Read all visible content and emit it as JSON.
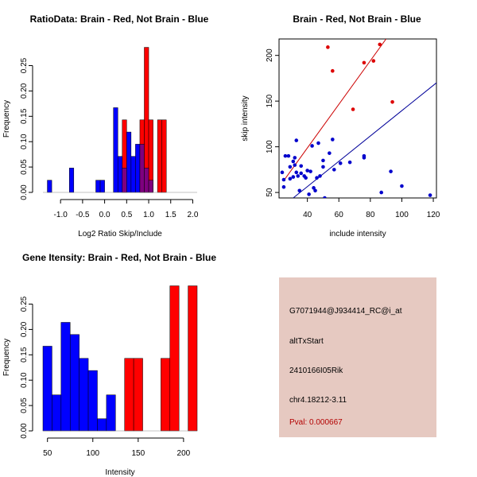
{
  "colors": {
    "red": "#ff0000",
    "blue": "#0000ff",
    "overlap": "#7f007f",
    "scatter_red": "#dd0000",
    "scatter_blue": "#0000cc",
    "fit_red": "#cc0000",
    "fit_blue": "#000099",
    "panel_bg": "#e6c9c1",
    "pval": "#b30000"
  },
  "chart_data": [
    {
      "id": "ratio-hist",
      "type": "bar",
      "title": "RatioData: Brain - Red, Not Brain - Blue",
      "xlabel": "Log2 Ratio Skip/Include",
      "ylabel": "Frequency",
      "xlim": [
        -1.4,
        2.1
      ],
      "ylim": [
        0,
        0.29
      ],
      "xticks": [
        -1.0,
        -0.5,
        0.0,
        0.5,
        1.0,
        1.5,
        2.0
      ],
      "xtick_labels": [
        "-1.0",
        "-0.5",
        "0.0",
        "0.5",
        "1.0",
        "1.5",
        "2.0"
      ],
      "yticks": [
        0.0,
        0.05,
        0.1,
        0.15,
        0.2,
        0.25
      ],
      "ytick_labels": [
        "0.00",
        "0.05",
        "0.10",
        "0.15",
        "0.20",
        "0.25"
      ],
      "series": [
        {
          "name": "Not Brain",
          "color": "blue",
          "bins": [
            {
              "x0": -1.3,
              "x1": -1.2,
              "value": 0.024
            },
            {
              "x0": -0.8,
              "x1": -0.7,
              "value": 0.048
            },
            {
              "x0": -0.2,
              "x1": -0.1,
              "value": 0.024
            },
            {
              "x0": -0.1,
              "x1": 0.0,
              "value": 0.024
            },
            {
              "x0": 0.2,
              "x1": 0.3,
              "value": 0.167
            },
            {
              "x0": 0.3,
              "x1": 0.4,
              "value": 0.071
            },
            {
              "x0": 0.4,
              "x1": 0.5,
              "value": 0.048
            },
            {
              "x0": 0.5,
              "x1": 0.6,
              "value": 0.119
            },
            {
              "x0": 0.6,
              "x1": 0.7,
              "value": 0.071
            },
            {
              "x0": 0.7,
              "x1": 0.8,
              "value": 0.095
            },
            {
              "x0": 0.8,
              "x1": 0.9,
              "value": 0.095
            },
            {
              "x0": 0.9,
              "x1": 1.0,
              "value": 0.048
            },
            {
              "x0": 1.0,
              "x1": 1.1,
              "value": 0.024
            }
          ]
        },
        {
          "name": "Brain",
          "color": "red",
          "bins": [
            {
              "x0": 0.4,
              "x1": 0.5,
              "value": 0.143
            },
            {
              "x0": 0.8,
              "x1": 0.9,
              "value": 0.143
            },
            {
              "x0": 0.9,
              "x1": 1.0,
              "value": 0.286
            },
            {
              "x0": 1.0,
              "x1": 1.1,
              "value": 0.143
            },
            {
              "x0": 1.2,
              "x1": 1.3,
              "value": 0.143
            },
            {
              "x0": 1.3,
              "x1": 1.4,
              "value": 0.143
            }
          ]
        }
      ]
    },
    {
      "id": "intensity-scatter",
      "type": "scatter",
      "title": "Brain - Red, Not Brain - Blue",
      "xlabel": "include intensity",
      "ylabel": "skip intensity",
      "xlim": [
        22,
        122
      ],
      "ylim": [
        44,
        218
      ],
      "xticks": [
        40,
        60,
        80,
        100,
        120
      ],
      "xtick_labels": [
        "40",
        "60",
        "80",
        "100",
        "120"
      ],
      "yticks": [
        50,
        100,
        150,
        200
      ],
      "ytick_labels": [
        "50",
        "100",
        "150",
        "200"
      ],
      "series": [
        {
          "name": "Brain",
          "color": "scatter_red",
          "points": [
            [
              53,
              209
            ],
            [
              56,
              183
            ],
            [
              76,
              192
            ],
            [
              82,
              194
            ],
            [
              86,
              212
            ],
            [
              94,
              149
            ],
            [
              69,
              141
            ]
          ]
        },
        {
          "name": "Not Brain",
          "color": "scatter_blue",
          "points": [
            [
              24,
              72
            ],
            [
              25,
              56
            ],
            [
              25,
              64
            ],
            [
              26,
              90
            ],
            [
              28,
              90
            ],
            [
              29,
              65
            ],
            [
              29,
              78
            ],
            [
              31,
              84
            ],
            [
              31,
              67
            ],
            [
              32,
              88
            ],
            [
              32,
              80
            ],
            [
              33,
              107
            ],
            [
              33,
              72
            ],
            [
              34,
              68
            ],
            [
              35,
              52
            ],
            [
              36,
              79
            ],
            [
              36,
              71
            ],
            [
              38,
              68
            ],
            [
              39,
              66
            ],
            [
              40,
              74
            ],
            [
              41,
              48
            ],
            [
              42,
              73
            ],
            [
              43,
              101
            ],
            [
              44,
              55
            ],
            [
              45,
              52
            ],
            [
              46,
              66
            ],
            [
              47,
              104
            ],
            [
              48,
              68
            ],
            [
              50,
              78
            ],
            [
              50,
              85
            ],
            [
              51,
              44
            ],
            [
              54,
              93
            ],
            [
              56,
              108
            ],
            [
              57,
              75
            ],
            [
              61,
              82
            ],
            [
              67,
              83
            ],
            [
              76,
              88
            ],
            [
              76,
              90
            ],
            [
              93,
              73
            ],
            [
              100,
              57
            ],
            [
              118,
              47
            ],
            [
              87,
              50
            ]
          ]
        }
      ],
      "fits": [
        {
          "name": "Brain fit",
          "color": "fit_red",
          "x0": 25,
          "y0": 63,
          "x1": 90,
          "y1": 218
        },
        {
          "name": "Not Brain fit",
          "color": "fit_blue",
          "x0": 31,
          "y0": 44,
          "x1": 122,
          "y1": 170
        }
      ]
    },
    {
      "id": "gene-hist",
      "type": "bar",
      "title": "Gene Itensity: Brain - Red, Not Brain - Blue",
      "xlabel": "Intensity",
      "ylabel": "Frequency",
      "xlim": [
        45,
        215
      ],
      "ylim": [
        0,
        0.29
      ],
      "xticks": [
        50,
        100,
        150,
        200
      ],
      "xtick_labels": [
        "50",
        "100",
        "150",
        "200"
      ],
      "yticks": [
        0.0,
        0.05,
        0.1,
        0.15,
        0.2,
        0.25
      ],
      "ytick_labels": [
        "0.00",
        "0.05",
        "0.10",
        "0.15",
        "0.20",
        "0.25"
      ],
      "series": [
        {
          "name": "Not Brain",
          "color": "blue",
          "bins": [
            {
              "x0": 45,
              "x1": 55,
              "value": 0.167
            },
            {
              "x0": 55,
              "x1": 65,
              "value": 0.071
            },
            {
              "x0": 65,
              "x1": 75,
              "value": 0.214
            },
            {
              "x0": 75,
              "x1": 85,
              "value": 0.19
            },
            {
              "x0": 85,
              "x1": 95,
              "value": 0.143
            },
            {
              "x0": 95,
              "x1": 105,
              "value": 0.119
            },
            {
              "x0": 105,
              "x1": 115,
              "value": 0.024
            },
            {
              "x0": 115,
              "x1": 125,
              "value": 0.071
            }
          ]
        },
        {
          "name": "Brain",
          "color": "red",
          "bins": [
            {
              "x0": 135,
              "x1": 145,
              "value": 0.143
            },
            {
              "x0": 145,
              "x1": 155,
              "value": 0.143
            },
            {
              "x0": 175,
              "x1": 185,
              "value": 0.143
            },
            {
              "x0": 185,
              "x1": 195,
              "value": 0.286
            },
            {
              "x0": 205,
              "x1": 215,
              "value": 0.286
            }
          ]
        }
      ]
    }
  ],
  "info_panel": {
    "probe": "G7071944@J934414_RC@i_at",
    "event_type": "altTxStart",
    "gene": "2410166I05Rik",
    "location": "chr4.18212-3.11",
    "pval": "Pval: 0.000667"
  }
}
